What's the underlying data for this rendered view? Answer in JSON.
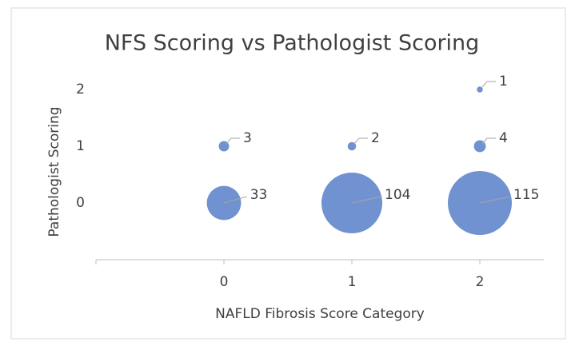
{
  "chart_data": {
    "type": "bubble",
    "title": "NFS Scoring vs Pathologist Scoring",
    "x_label": "NAFLD Fibrosis Score Category",
    "y_label": "Pathologist Scoring",
    "x": [
      0,
      0,
      1,
      1,
      2,
      2,
      2
    ],
    "y": [
      0,
      1,
      0,
      1,
      0,
      1,
      2
    ],
    "sizes": [
      33,
      3,
      104,
      2,
      115,
      4,
      1
    ],
    "color": "#7092d0",
    "xlim": [
      -1,
      2.5
    ],
    "xticks": [
      0,
      1,
      2
    ],
    "ylim": [
      -1,
      2
    ],
    "yticks": [
      0,
      1,
      2
    ],
    "grid": false
  }
}
